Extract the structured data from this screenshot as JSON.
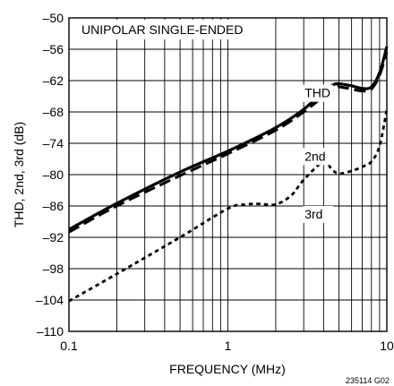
{
  "chart_data": {
    "type": "line",
    "title": "",
    "annotation": "UNIPOLAR SINGLE-ENDED",
    "figure_id": "235114 G02",
    "xlabel": "FREQUENCY (MHz)",
    "ylabel": "THD, 2nd, 3rd (dB)",
    "x_scale": "log",
    "xlim": [
      0.1,
      10
    ],
    "ylim": [
      -110,
      -50
    ],
    "x_ticks": [
      {
        "value": 0.1,
        "label": "0.1"
      },
      {
        "value": 1,
        "label": "1"
      },
      {
        "value": 10,
        "label": "10"
      }
    ],
    "y_ticks": [
      {
        "value": -50,
        "label": "–50"
      },
      {
        "value": -56,
        "label": "–56"
      },
      {
        "value": -62,
        "label": "–62"
      },
      {
        "value": -68,
        "label": "–68"
      },
      {
        "value": -74,
        "label": "–74"
      },
      {
        "value": -80,
        "label": "–80"
      },
      {
        "value": -86,
        "label": "–86"
      },
      {
        "value": -92,
        "label": "–92"
      },
      {
        "value": -98,
        "label": "–98"
      },
      {
        "value": -104,
        "label": "–104"
      },
      {
        "value": -110,
        "label": "–110"
      }
    ],
    "grid": true,
    "series": [
      {
        "name": "THD",
        "style": "solid",
        "label_at": [
          3.0,
          -65.2
        ],
        "x": [
          0.1,
          0.2,
          0.5,
          1,
          2,
          3,
          4,
          4.6,
          5,
          6,
          7,
          8,
          9,
          10
        ],
        "y": [
          -90.5,
          -85.5,
          -79.5,
          -75.5,
          -71.0,
          -67.5,
          -64.0,
          -62.8,
          -62.6,
          -63.0,
          -63.5,
          -63.2,
          -60.5,
          -55.5
        ]
      },
      {
        "name": "2nd",
        "style": "dashed",
        "label_at": [
          3.0,
          -77.3
        ],
        "x": [
          0.1,
          0.2,
          0.5,
          1,
          2,
          3,
          4,
          4.8,
          5,
          6,
          7,
          8,
          9,
          10
        ],
        "y": [
          -91.0,
          -86.0,
          -80.2,
          -76.0,
          -71.5,
          -68.0,
          -65.0,
          -63.3,
          -63.2,
          -63.6,
          -64.0,
          -63.6,
          -61.0,
          -56.5
        ]
      },
      {
        "name": "3rd",
        "style": "dotted",
        "label_at": [
          3.0,
          -88.4
        ],
        "x": [
          0.1,
          0.2,
          0.5,
          1,
          1.3,
          1.6,
          2,
          2.5,
          3,
          4,
          4.5,
          5,
          6,
          7,
          8,
          9,
          10
        ],
        "y": [
          -104.2,
          -99.0,
          -92.0,
          -86.5,
          -85.7,
          -85.6,
          -85.7,
          -84.0,
          -81.0,
          -77.5,
          -79.0,
          -79.8,
          -79.3,
          -78.5,
          -77.5,
          -74.5,
          -67.5
        ]
      }
    ]
  }
}
